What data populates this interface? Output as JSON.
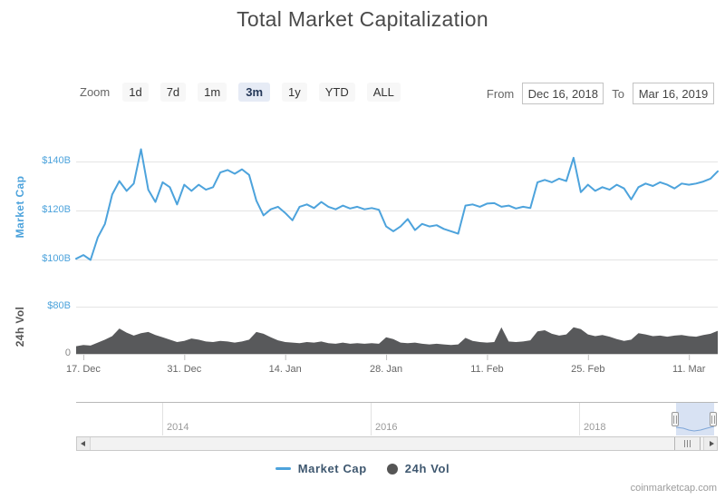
{
  "title": "Total Market Capitalization",
  "controls": {
    "zoom_label": "Zoom",
    "range_buttons": [
      {
        "label": "1d",
        "selected": false
      },
      {
        "label": "7d",
        "selected": false
      },
      {
        "label": "1m",
        "selected": false
      },
      {
        "label": "3m",
        "selected": true
      },
      {
        "label": "1y",
        "selected": false
      },
      {
        "label": "YTD",
        "selected": false
      },
      {
        "label": "ALL",
        "selected": false
      }
    ],
    "from_label": "From",
    "from_value": "Dec 16, 2018",
    "to_label": "To",
    "to_value": "Mar 16, 2019"
  },
  "chart_data": {
    "type": "line",
    "title": "Total Market Capitalization",
    "x_range": [
      "Dec 16, 2018",
      "Mar 16, 2019"
    ],
    "x_tick_labels": [
      "17. Dec",
      "31. Dec",
      "14. Jan",
      "28. Jan",
      "11. Feb",
      "25. Feb",
      "11. Mar"
    ],
    "x_tick_days": [
      1,
      15,
      29,
      43,
      57,
      71,
      85
    ],
    "grid": true,
    "legend_position": "bottom",
    "series": [
      {
        "name": "Market Cap",
        "type": "line",
        "color": "#4da3dc",
        "axis_title": "Market Cap",
        "unit": "$B",
        "ylim": [
          95,
          150
        ],
        "yticks": [
          {
            "value": 140,
            "label": "$140B"
          },
          {
            "value": 120,
            "label": "$120B"
          },
          {
            "value": 100,
            "label": "$100B"
          }
        ],
        "values": [
          100.3,
          101.8,
          99.8,
          109.0,
          114.5,
          126.5,
          132.0,
          128.0,
          131.0,
          145.0,
          128.5,
          123.5,
          131.5,
          129.5,
          122.5,
          130.5,
          128.0,
          130.5,
          128.5,
          129.5,
          135.5,
          136.5,
          135.0,
          136.8,
          134.5,
          124.0,
          118.0,
          120.5,
          121.5,
          119.0,
          116.0,
          121.5,
          122.5,
          121.0,
          123.5,
          121.5,
          120.5,
          122.0,
          120.8,
          121.5,
          120.5,
          121.0,
          120.3,
          113.5,
          111.5,
          113.5,
          116.5,
          112.0,
          114.5,
          113.5,
          114.0,
          112.5,
          111.5,
          110.5,
          122.0,
          122.5,
          121.5,
          122.8,
          123.0,
          121.5,
          122.0,
          120.8,
          121.5,
          121.0,
          131.5,
          132.5,
          131.5,
          133.0,
          132.0,
          141.5,
          127.5,
          130.5,
          128.0,
          129.5,
          128.5,
          130.5,
          129.0,
          124.5,
          129.5,
          131.0,
          130.0,
          131.5,
          130.5,
          129.0,
          131.0,
          130.5,
          131.0,
          131.8,
          133.0,
          136.0
        ]
      },
      {
        "name": "24h Vol",
        "type": "area",
        "color": "#58595b",
        "axis_title": "24h Vol",
        "unit": "$B",
        "ylim": [
          0,
          80
        ],
        "yticks": [
          {
            "value": 80,
            "label": "$80B"
          },
          {
            "value": 0,
            "label": "0"
          }
        ],
        "values": [
          13,
          15,
          14,
          19,
          24,
          30,
          43,
          36,
          31,
          35,
          37,
          32,
          28,
          24,
          20,
          22,
          26,
          24,
          21,
          20,
          22,
          21,
          19,
          21,
          24,
          37,
          34,
          28,
          23,
          20,
          19,
          18,
          20,
          19,
          21,
          18,
          17,
          19,
          17,
          18,
          17,
          18,
          17,
          28,
          25,
          19,
          18,
          19,
          17,
          16,
          17,
          16,
          15,
          16,
          27,
          22,
          20,
          19,
          20,
          45,
          21,
          20,
          21,
          23,
          38,
          40,
          34,
          31,
          33,
          45,
          42,
          33,
          30,
          32,
          29,
          25,
          22,
          24,
          35,
          33,
          30,
          31,
          29,
          31,
          32,
          30,
          29,
          32,
          34,
          39
        ]
      }
    ],
    "navigator": {
      "year_labels": [
        "2014",
        "2016",
        "2018"
      ]
    }
  },
  "legend": [
    {
      "label": "Market Cap",
      "marker": "line",
      "color": "#4da3dc"
    },
    {
      "label": "24h Vol",
      "marker": "circle",
      "color": "#555555"
    }
  ],
  "credit": "coinmarketcap.com"
}
